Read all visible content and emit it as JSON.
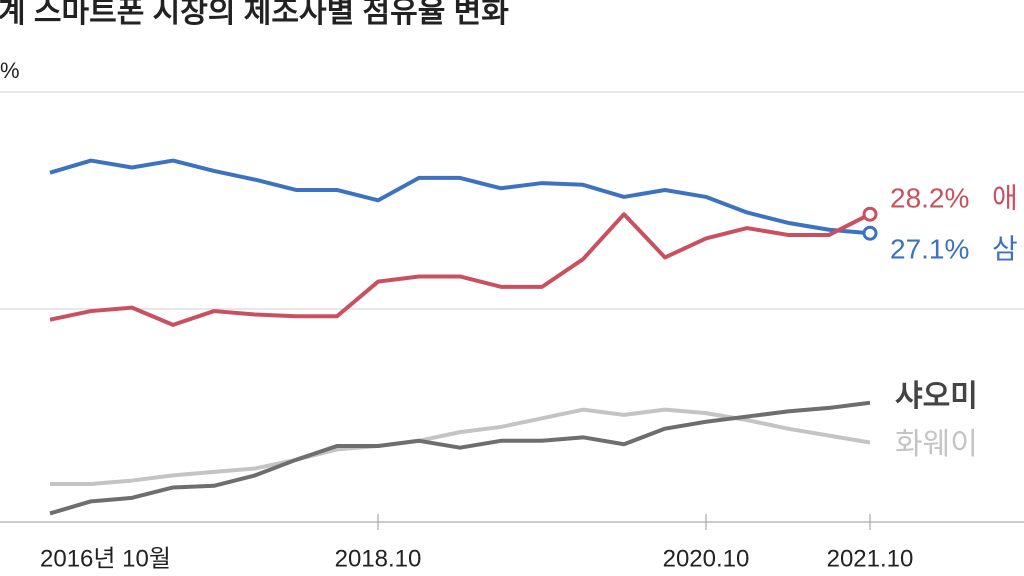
{
  "chart_data": {
    "type": "line",
    "title": "계 스마트폰 시장의 제조사별 점유율 변화",
    "y_label": "%",
    "categories": [
      "2016년 10월",
      null,
      null,
      null,
      null,
      null,
      null,
      null,
      "2018.10",
      null,
      null,
      null,
      null,
      null,
      null,
      null,
      "2020.10",
      null,
      null,
      null,
      "2021.10"
    ],
    "ylim": [
      10,
      37
    ],
    "series": [
      {
        "name": "삼",
        "color": "#3d72c0",
        "end_marker": true,
        "values": [
          30.6,
          31.3,
          30.9,
          31.3,
          30.7,
          30.2,
          29.6,
          29.6,
          29.0,
          30.3,
          30.3,
          29.7,
          30.0,
          29.9,
          29.2,
          29.6,
          29.2,
          28.3,
          27.7,
          27.3,
          27.1
        ],
        "value_labels": [
          null,
          null,
          null,
          null,
          null,
          null,
          null,
          null,
          null,
          null,
          null,
          null,
          null,
          null,
          null,
          null,
          null,
          null,
          null,
          null,
          "27.1%"
        ]
      },
      {
        "name": "애",
        "color": "#c9505f",
        "end_marker": true,
        "values": [
          22.1,
          22.6,
          22.8,
          21.8,
          22.6,
          22.4,
          22.3,
          22.3,
          24.3,
          24.6,
          24.6,
          24.0,
          24.0,
          25.6,
          28.2,
          25.7,
          26.8,
          27.4,
          27.0,
          27.0,
          28.2
        ],
        "value_labels": [
          null,
          null,
          null,
          null,
          null,
          null,
          null,
          null,
          null,
          null,
          null,
          null,
          null,
          null,
          null,
          null,
          null,
          null,
          null,
          null,
          "28.2%"
        ]
      },
      {
        "name": "샤오미",
        "color": "#6e6e6e",
        "end_marker": false,
        "values": [
          10.9,
          11.6,
          11.8,
          12.4,
          12.5,
          13.1,
          14.0,
          14.8,
          14.8,
          15.1,
          14.7,
          15.1,
          15.1,
          15.3,
          14.9,
          15.8,
          16.2,
          16.5,
          16.8,
          17.0,
          17.3
        ]
      },
      {
        "name": "화웨이",
        "color": "#c4c4c4",
        "end_marker": false,
        "values": [
          12.6,
          12.6,
          12.8,
          13.1,
          13.3,
          13.5,
          14.0,
          14.6,
          14.8,
          15.1,
          15.6,
          15.9,
          16.4,
          16.9,
          16.6,
          16.9,
          16.7,
          16.3,
          15.8,
          15.4,
          15.0
        ]
      }
    ]
  }
}
